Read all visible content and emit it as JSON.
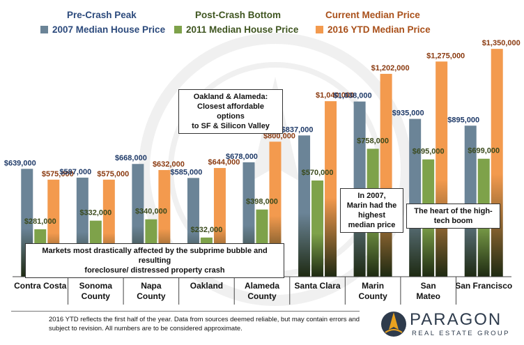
{
  "legend": {
    "groups": [
      {
        "heading": "Pre-Crash Peak",
        "heading_color": "#2c4a7c",
        "label": "2007 Median House Price",
        "label_color": "#2c4a7c",
        "swatch": "#6b8497"
      },
      {
        "heading": "Post-Crash Bottom",
        "heading_color": "#3f5520",
        "label": "2011 Median House Price",
        "label_color": "#3f5520",
        "swatch": "#7ea24a"
      },
      {
        "heading": "Current Median Price",
        "heading_color": "#a9501a",
        "label": "2016 YTD Median Price",
        "label_color": "#a9501a",
        "swatch": "#f39a4e"
      }
    ]
  },
  "chart_data": {
    "type": "bar",
    "categories": [
      "Contra Costa",
      "Sonoma County",
      "Napa County",
      "Oakland",
      "Alameda County",
      "Santa Clara",
      "Marin County",
      "San Mateo",
      "San Francisco"
    ],
    "category_lines": [
      [
        "Contra  Costa"
      ],
      [
        "Sonoma",
        "County"
      ],
      [
        "Napa",
        "County"
      ],
      [
        "Oakland"
      ],
      [
        "Alameda",
        "County"
      ],
      [
        "Santa Clara"
      ],
      [
        "Marin",
        "County"
      ],
      [
        "San",
        "Mateo"
      ],
      [
        "San Francisco"
      ]
    ],
    "series": [
      {
        "name": "2007 Median House Price",
        "color": "#6b8497",
        "label_color": "#1f3a68",
        "values": [
          639000,
          587000,
          668000,
          585000,
          678000,
          837000,
          1038000,
          935000,
          895000
        ]
      },
      {
        "name": "2011 Median House Price",
        "color": "#7ea24a",
        "label_color": "#3a4a1c",
        "values": [
          281000,
          332000,
          340000,
          232000,
          398000,
          570000,
          758000,
          695000,
          699000
        ]
      },
      {
        "name": "2016 YTD Median Price",
        "color": "#f39a4e",
        "label_color": "#8a3a10",
        "values": [
          575000,
          575000,
          632000,
          644000,
          800000,
          1040000,
          1202000,
          1275000,
          1350000
        ]
      }
    ],
    "value_labels": [
      [
        "$639,000",
        "$587,000",
        "$668,000",
        "$585,000",
        "$678,000",
        "$837,000",
        "$1,038,000",
        "$935,000",
        "$895,000"
      ],
      [
        "$281,000",
        "$332,000",
        "$340,000",
        "$232,000",
        "$398,000",
        "$570,000",
        "$758,000",
        "$695,000",
        "$699,000"
      ],
      [
        "$575,000",
        "$575,000",
        "$632,000",
        "$644,000",
        "$800,000",
        "$1,040,000",
        "$1,202,000",
        "$1,275,000",
        "$1,350,000"
      ]
    ],
    "ylim": [
      0,
      1400000
    ],
    "grid": false,
    "legend_position": "top"
  },
  "annotations": {
    "oakland_box": [
      "Oakland & Alameda:",
      "Closest affordable options",
      "to SF & Silicon Valley"
    ],
    "marin_box": [
      "In 2007,",
      "Marin had the",
      "highest",
      "median price"
    ],
    "tech_box": [
      "The heart of the high-",
      "tech boom"
    ],
    "crash_box": [
      "Markets most drastically affected by the subprime bubble and resulting",
      "foreclosure/ distressed property crash"
    ]
  },
  "footer": {
    "note": "2016 YTD reflects the first half of the year. Data from sources deemed reliable, but may contain errors and subject to revision. All numbers are to be considered approximate."
  },
  "brand": {
    "name": "PARAGON",
    "tagline": "REAL ESTATE GROUP",
    "logo_colors": [
      "#e9a21f",
      "#2e3b4c"
    ]
  }
}
